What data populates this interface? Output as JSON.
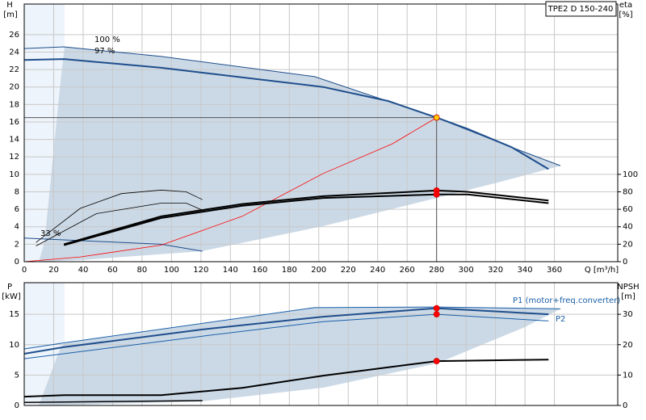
{
  "chart_data": [
    {
      "type": "line",
      "title": "TPE2 D 150-240",
      "xlabel": "Q [m³/h]",
      "ylabel": "H",
      "yunit": "[m]",
      "y2label": "eta",
      "y2unit": "[%]",
      "xlim": [
        0,
        403
      ],
      "xticks": [
        0,
        20,
        40,
        60,
        80,
        100,
        120,
        140,
        160,
        180,
        200,
        220,
        240,
        260,
        280,
        300,
        320,
        340,
        360
      ],
      "ylim": [
        0,
        29.5
      ],
      "yticks": [
        0,
        2,
        4,
        6,
        8,
        10,
        12,
        14,
        16,
        18,
        20,
        22,
        24,
        26
      ],
      "y2lim": [
        0,
        295
      ],
      "y2ticks": [
        0,
        20,
        40,
        60,
        80,
        100
      ],
      "grid": true,
      "show_xtick_labels": true,
      "series": [
        {
          "name": "100 %",
          "color": "#1f4e8c",
          "width": 1,
          "x": [
            0,
            27,
            93,
            197,
            280,
            334,
            364
          ],
          "values": [
            24.4,
            24.6,
            23.5,
            21.2,
            16.5,
            12.9,
            11.0
          ]
        },
        {
          "name": "97 %",
          "color": "#1f4e8c",
          "width": 2,
          "x": [
            0,
            27,
            93,
            203,
            247,
            280,
            301,
            331,
            356
          ],
          "values": [
            23.1,
            23.2,
            22.2,
            20,
            18.4,
            16.5,
            15.2,
            13.1,
            10.6
          ]
        },
        {
          "name": "33 %",
          "color": "#1f4e8c",
          "width": 1,
          "x": [
            0,
            27,
            93,
            121
          ],
          "values": [
            2.7,
            2.5,
            2.0,
            1.2
          ]
        },
        {
          "color": "#ff0000",
          "width": 0.8,
          "x": [
            0,
            38,
            93,
            148,
            203,
            250,
            280
          ],
          "values": [
            0,
            0.55,
            1.9,
            5.2,
            10.1,
            13.5,
            16.5
          ]
        },
        {
          "color": "#000000",
          "width": 2,
          "axis": "y2",
          "x": [
            27,
            93,
            148,
            203,
            280,
            301,
            356
          ],
          "values": [
            20,
            52,
            66,
            75,
            81.5,
            80,
            70
          ]
        },
        {
          "color": "#000000",
          "width": 2,
          "axis": "y2",
          "x": [
            27,
            93,
            148,
            203,
            280,
            301,
            356
          ],
          "values": [
            19,
            50,
            64,
            73,
            77,
            77,
            67
          ]
        },
        {
          "color": "#000000",
          "width": 0.8,
          "axis": "y2",
          "x": [
            8,
            38,
            66,
            93,
            110,
            121
          ],
          "values": [
            22,
            61,
            78,
            82,
            80,
            71
          ]
        },
        {
          "color": "#000000",
          "width": 0.8,
          "axis": "y2",
          "x": [
            8,
            49,
            93,
            110,
            121
          ],
          "values": [
            18,
            55,
            67,
            67,
            59
          ]
        }
      ],
      "markers": [
        {
          "x": 280,
          "y": 16.5,
          "color": "#ffcc00",
          "crosshair": true
        },
        {
          "x": 280,
          "y": 81.5,
          "axis": "y2",
          "color": "#ff0000"
        },
        {
          "x": 280,
          "y": 77,
          "axis": "y2",
          "color": "#ff0000"
        }
      ]
    },
    {
      "type": "line",
      "ylabel": "P",
      "yunit": "[kW]",
      "y2label": "NPSH",
      "y2unit": "[m]",
      "xlim": [
        0,
        403
      ],
      "xticks": [
        0,
        20,
        40,
        60,
        80,
        100,
        120,
        140,
        160,
        180,
        200,
        220,
        240,
        260,
        280,
        300,
        320,
        340,
        360
      ],
      "ylim": [
        0,
        20.2
      ],
      "yticks": [
        0,
        5,
        10,
        15
      ],
      "y2lim": [
        0,
        40.4
      ],
      "y2ticks": [
        0,
        10,
        20,
        30
      ],
      "grid": true,
      "show_xtick_labels": false,
      "series": [
        {
          "color": "#1a5fa8",
          "width": 1,
          "x": [
            0,
            27,
            197,
            280,
            364
          ],
          "values": [
            9.3,
            10.3,
            16.1,
            16.2,
            15.9
          ]
        },
        {
          "name": "P1 (motor+freq.converter)",
          "color": "#1f4e8c",
          "width": 2,
          "x": [
            0,
            27,
            121,
            203,
            280,
            356
          ],
          "values": [
            8.5,
            9.6,
            12.5,
            14.6,
            16.0,
            15.0
          ]
        },
        {
          "name": "P2",
          "color": "#1a5fa8",
          "width": 1,
          "x": [
            0,
            121,
            203,
            280,
            356
          ],
          "values": [
            7.7,
            11.4,
            13.8,
            15.0,
            13.9
          ]
        },
        {
          "color": "#000000",
          "width": 2,
          "axis": "y2",
          "x": [
            0,
            27,
            93,
            148,
            203,
            280,
            356
          ],
          "values": [
            2.9,
            3.4,
            3.4,
            5.8,
            9.8,
            14.6,
            15.1
          ]
        },
        {
          "color": "#000000",
          "width": 1.5,
          "x": [
            0,
            121
          ],
          "values": [
            0.5,
            0.8
          ]
        }
      ],
      "markers": [
        {
          "x": 280,
          "y": 16.0,
          "color": "#ff0000"
        },
        {
          "x": 280,
          "y": 15.0,
          "color": "#ff0000"
        },
        {
          "x": 280,
          "y": 14.6,
          "axis": "y2",
          "color": "#ff0000"
        }
      ]
    }
  ]
}
